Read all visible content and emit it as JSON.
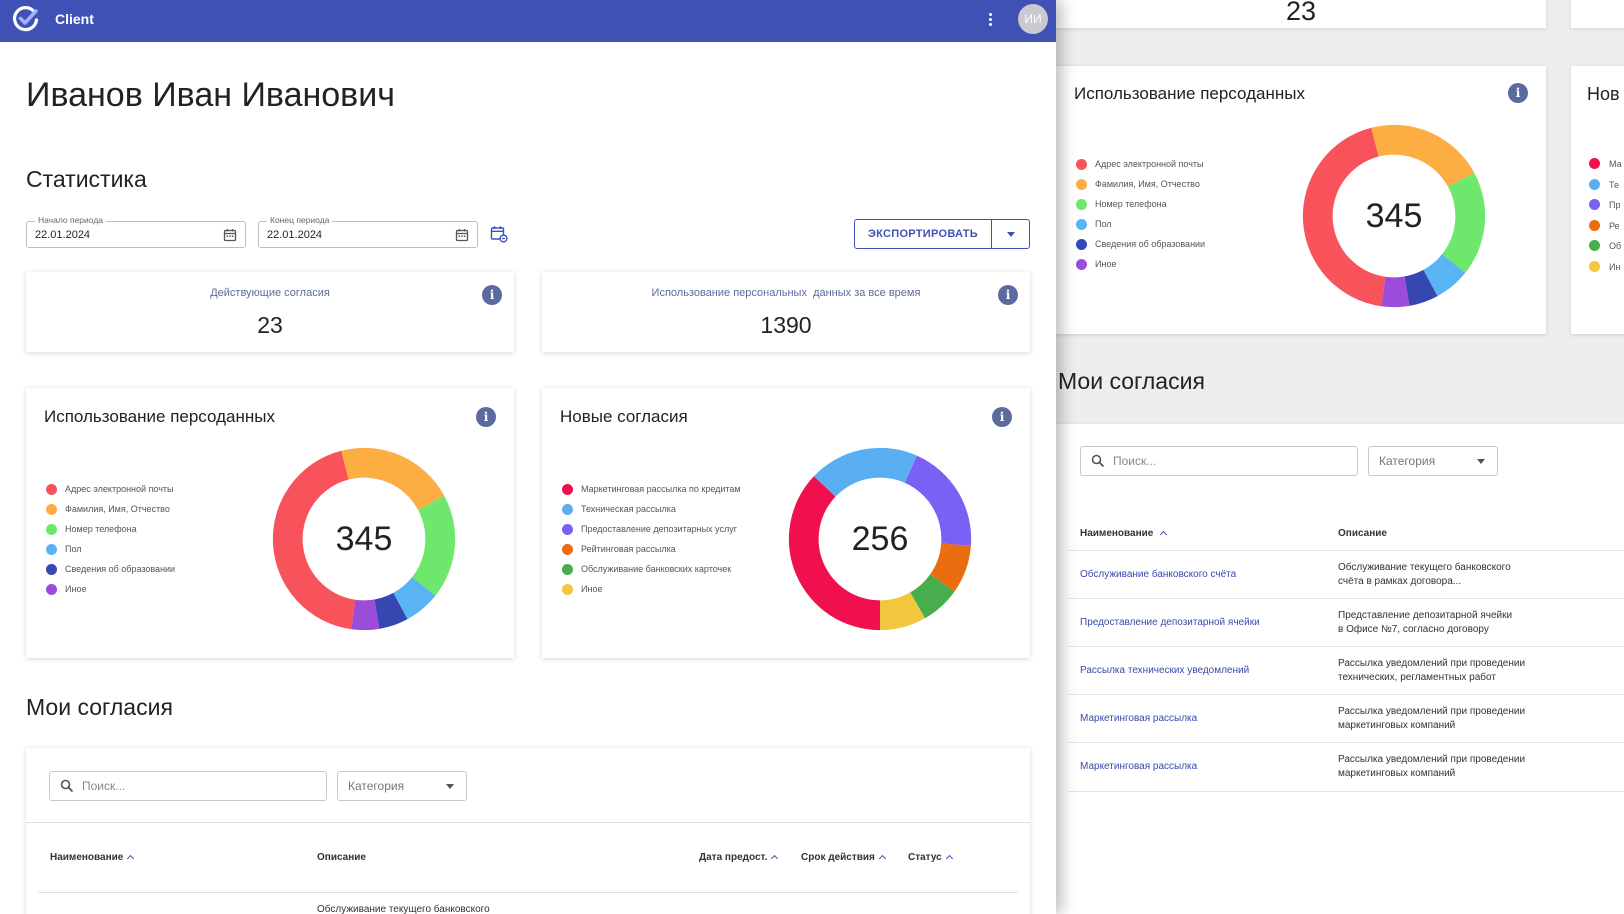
{
  "app": {
    "title": "Client",
    "avatar_initials": "ИИ"
  },
  "page": {
    "title": "Иванов Иван Иванович",
    "stats_title": "Статистика",
    "consents_title": "Мои согласия"
  },
  "filters": {
    "start": {
      "label": "Начало периода",
      "value": "22.01.2024"
    },
    "end": {
      "label": "Конец периода",
      "value": "22.01.2024"
    },
    "export_label": "ЭКСПОРТИРОВАТЬ"
  },
  "stats": [
    {
      "label": "Действующие согласия",
      "value": "23"
    },
    {
      "label": "Использование персональных  данных за все время",
      "value": "1390"
    }
  ],
  "chart_data": [
    {
      "type": "pie",
      "title": "Использование персоданных",
      "total": "345",
      "categories": [
        "Адрес электронной почты",
        "Фамилия, Имя, Отчество",
        "Номер телефона",
        "Пол",
        "Сведения об образовании",
        "Иное"
      ],
      "values": [
        151,
        73,
        64,
        22,
        18,
        17
      ],
      "colors": [
        "#f8525a",
        "#fcae42",
        "#6ee76d",
        "#58b4f2",
        "#3647b2",
        "#9b4dd9"
      ],
      "start_deg": 188
    },
    {
      "type": "pie",
      "title": "Новые согласия",
      "total": "256",
      "categories": [
        "Маркетинговая рассылка по кредитам",
        "Техническая рассылка",
        "Предоставление депозитарных услуг",
        "Рейтинговая рассылка",
        "Обслуживание банковских карточек",
        "Иное"
      ],
      "values": [
        95,
        50,
        50,
        22,
        18,
        21
      ],
      "colors": [
        "#f0104e",
        "#5aaef2",
        "#7b60f5",
        "#ec6c10",
        "#48ad4c",
        "#f2c73e"
      ],
      "start_deg": 180
    }
  ],
  "table": {
    "search_placeholder": "Поиск...",
    "category_label": "Категория",
    "columns": [
      "Наименование",
      "Описание",
      "Дата предост.",
      "Срок действия",
      "Статус"
    ],
    "first_row_desc_partial": "Обслуживание текущего банковского"
  },
  "background": {
    "top_stat_value": "23",
    "chart_title": "Использование персоданных",
    "chart_total": "345",
    "card2_title_partial": "Нов",
    "card2_legend_partial": [
      "Ма",
      "Те",
      "Пр",
      "Ре",
      "Об",
      "Ин"
    ],
    "section_title": "Мои согласия",
    "search_placeholder": "Поиск...",
    "category_label": "Категория",
    "columns": [
      "Наименование",
      "Описание"
    ],
    "rows": [
      {
        "name": "Обслуживание банковского счёта",
        "desc1": "Обслуживание текущего банковского",
        "desc2": "счёта в рамках договора..."
      },
      {
        "name": "Предоставление депозитарной ячейки",
        "desc1": "Представление депозитарной ячейки",
        "desc2": "в Офисе №7, согласно договору"
      },
      {
        "name": "Рассылка технических уведомлений",
        "desc1": "Рассылка уведомлений при проведении",
        "desc2": "технических, регламентных работ"
      },
      {
        "name": "Маркетинговая рассылка",
        "desc1": "Рассылка уведомлений при проведении",
        "desc2": "маркетинговых компаний"
      },
      {
        "name": "Маркетинговая рассылка",
        "desc1": "Рассылка уведомлений при проведении",
        "desc2": "маркетинговых компаний"
      }
    ]
  }
}
